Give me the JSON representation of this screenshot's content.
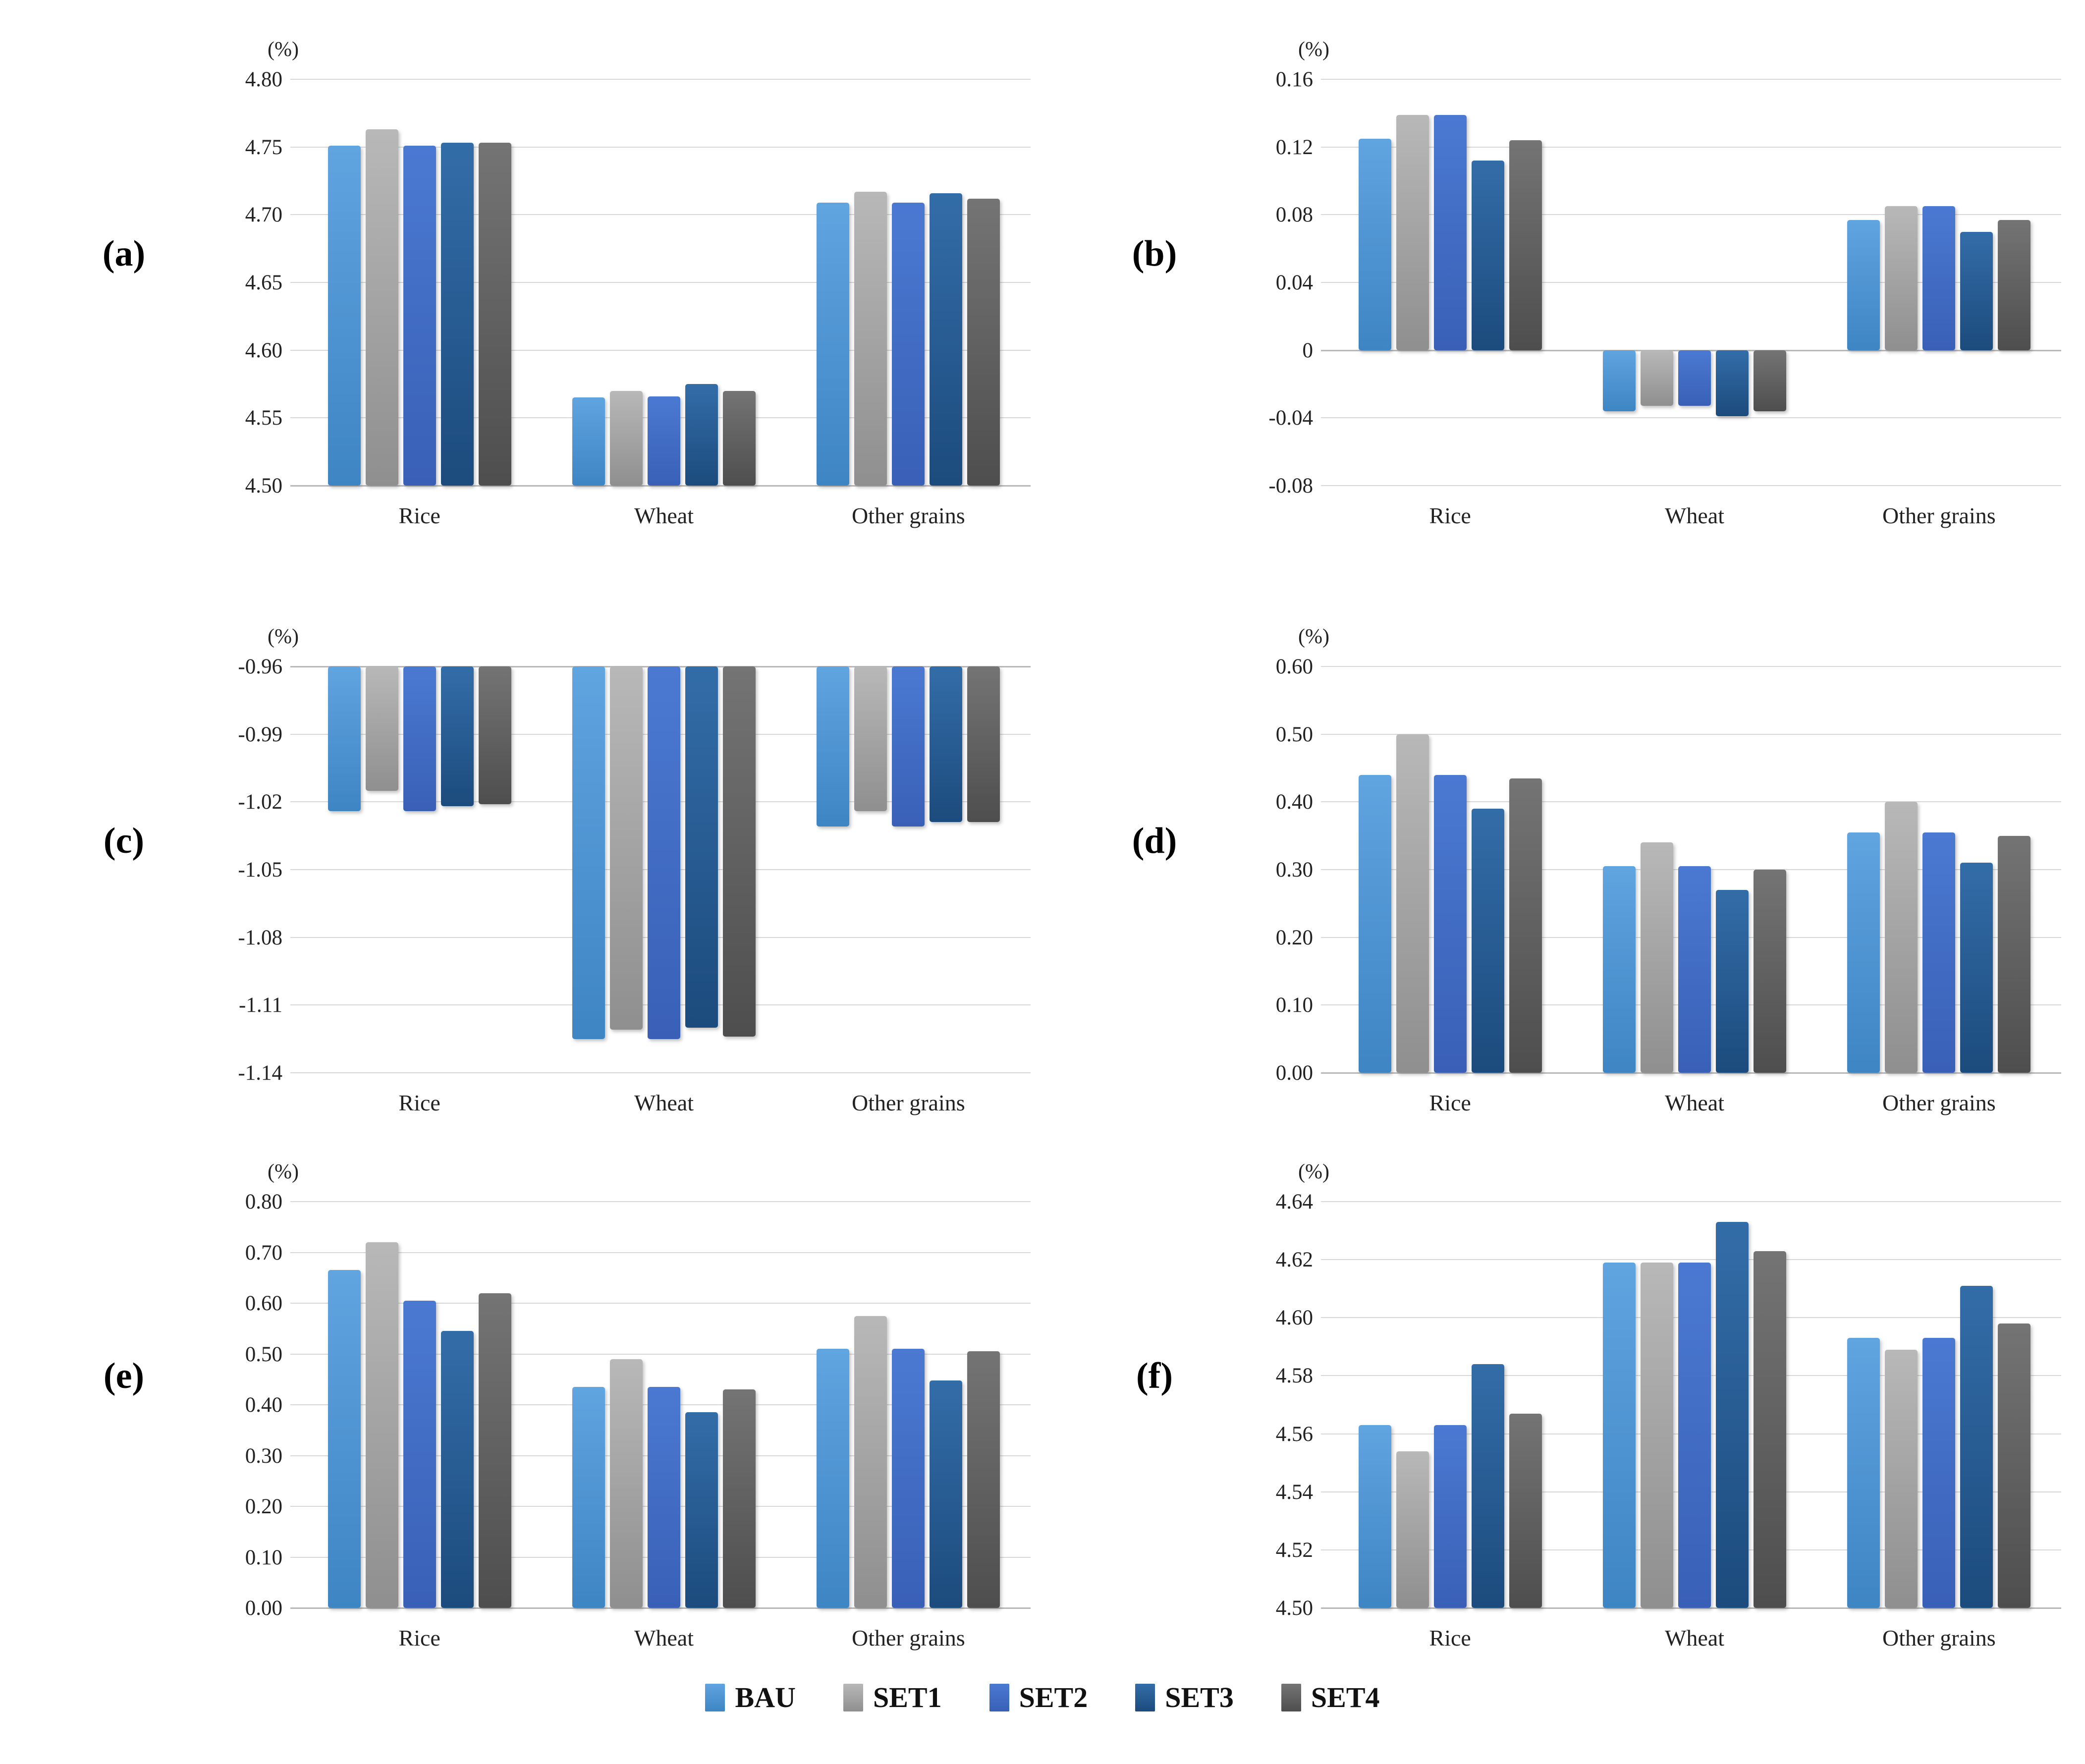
{
  "figure_unit": "(%)",
  "legend": {
    "items": [
      {
        "name": "BAU",
        "color": "#4E96D4",
        "grad_top": "#60A4E0",
        "grad_bottom": "#3E85C4"
      },
      {
        "name": "SET1",
        "color": "#A6A6A6",
        "grad_top": "#B8B8B8",
        "grad_bottom": "#8F8F8F"
      },
      {
        "name": "SET2",
        "color": "#4472C4",
        "grad_top": "#4B79D2",
        "grad_bottom": "#3960B6"
      },
      {
        "name": "SET3",
        "color": "#255C92",
        "grad_top": "#336DA8",
        "grad_bottom": "#1C4B7D"
      },
      {
        "name": "SET4",
        "color": "#636363",
        "grad_top": "#747474",
        "grad_bottom": "#4E4E4E"
      }
    ]
  },
  "chart_data": [
    {
      "id": "a",
      "panel_label": "(a)",
      "type": "bar",
      "unit_label": "(%)",
      "categories": [
        "Rice",
        "Wheat",
        "Other grains"
      ],
      "ylim": [
        4.5,
        4.8
      ],
      "baseline": 4.5,
      "grid": true,
      "legend_position": "bottom-shared",
      "ytick_values": [
        4.8,
        4.75,
        4.7,
        4.65,
        4.6,
        4.55,
        4.5
      ],
      "ytick_labels": [
        "4.80",
        "4.75",
        "4.70",
        "4.65",
        "4.60",
        "4.55",
        "4.50"
      ],
      "series": [
        {
          "name": "BAU",
          "values": [
            4.751,
            4.565,
            4.709
          ]
        },
        {
          "name": "SET1",
          "values": [
            4.763,
            4.57,
            4.717
          ]
        },
        {
          "name": "SET2",
          "values": [
            4.751,
            4.566,
            4.709
          ]
        },
        {
          "name": "SET3",
          "values": [
            4.753,
            4.575,
            4.716
          ]
        },
        {
          "name": "SET4",
          "values": [
            4.753,
            4.57,
            4.712
          ]
        }
      ]
    },
    {
      "id": "b",
      "panel_label": "(b)",
      "type": "bar",
      "unit_label": "(%)",
      "categories": [
        "Rice",
        "Wheat",
        "Other grains"
      ],
      "ylim": [
        -0.08,
        0.16
      ],
      "baseline": 0,
      "grid": true,
      "legend_position": "bottom-shared",
      "ytick_values": [
        0.16,
        0.12,
        0.08,
        0.04,
        0,
        -0.04,
        -0.08
      ],
      "ytick_labels": [
        "0.16",
        "0.12",
        "0.08",
        "0.04",
        "0",
        "-0.04",
        "-0.08"
      ],
      "series": [
        {
          "name": "BAU",
          "values": [
            0.125,
            -0.036,
            0.077
          ]
        },
        {
          "name": "SET1",
          "values": [
            0.139,
            -0.033,
            0.085
          ]
        },
        {
          "name": "SET2",
          "values": [
            0.139,
            -0.033,
            0.085
          ]
        },
        {
          "name": "SET3",
          "values": [
            0.112,
            -0.039,
            0.07
          ]
        },
        {
          "name": "SET4",
          "values": [
            0.124,
            -0.036,
            0.077
          ]
        }
      ]
    },
    {
      "id": "c",
      "panel_label": "(c)",
      "type": "bar",
      "unit_label": "(%)",
      "categories": [
        "Rice",
        "Wheat",
        "Other grains"
      ],
      "ylim": [
        -1.14,
        -0.96
      ],
      "baseline": -0.96,
      "grid": true,
      "legend_position": "bottom-shared",
      "ytick_values": [
        -0.96,
        -0.99,
        -1.02,
        -1.05,
        -1.08,
        -1.11,
        -1.14
      ],
      "ytick_labels": [
        "-0.96",
        "-0.99",
        "-1.02",
        "-1.05",
        "-1.08",
        "-1.11",
        "-1.14"
      ],
      "series": [
        {
          "name": "BAU",
          "values": [
            -1.024,
            -1.125,
            -1.031
          ]
        },
        {
          "name": "SET1",
          "values": [
            -1.015,
            -1.121,
            -1.024
          ]
        },
        {
          "name": "SET2",
          "values": [
            -1.024,
            -1.125,
            -1.031
          ]
        },
        {
          "name": "SET3",
          "values": [
            -1.022,
            -1.12,
            -1.029
          ]
        },
        {
          "name": "SET4",
          "values": [
            -1.021,
            -1.124,
            -1.029
          ]
        }
      ]
    },
    {
      "id": "d",
      "panel_label": "(d)",
      "type": "bar",
      "unit_label": "(%)",
      "categories": [
        "Rice",
        "Wheat",
        "Other grains"
      ],
      "ylim": [
        0.0,
        0.6
      ],
      "baseline": 0,
      "grid": true,
      "legend_position": "bottom-shared",
      "ytick_values": [
        0.6,
        0.5,
        0.4,
        0.3,
        0.2,
        0.1,
        0.0
      ],
      "ytick_labels": [
        "0.60",
        "0.50",
        "0.40",
        "0.30",
        "0.20",
        "0.10",
        "0.00"
      ],
      "series": [
        {
          "name": "BAU",
          "values": [
            0.44,
            0.305,
            0.355
          ]
        },
        {
          "name": "SET1",
          "values": [
            0.5,
            0.34,
            0.4
          ]
        },
        {
          "name": "SET2",
          "values": [
            0.44,
            0.305,
            0.355
          ]
        },
        {
          "name": "SET3",
          "values": [
            0.39,
            0.27,
            0.31
          ]
        },
        {
          "name": "SET4",
          "values": [
            0.435,
            0.3,
            0.35
          ]
        }
      ]
    },
    {
      "id": "e",
      "panel_label": "(e)",
      "type": "bar",
      "unit_label": "(%)",
      "categories": [
        "Rice",
        "Wheat",
        "Other grains"
      ],
      "ylim": [
        0.0,
        0.8
      ],
      "baseline": 0,
      "grid": true,
      "legend_position": "bottom-shared",
      "ytick_values": [
        0.8,
        0.7,
        0.6,
        0.5,
        0.4,
        0.3,
        0.2,
        0.1,
        0.0
      ],
      "ytick_labels": [
        "0.80",
        "0.70",
        "0.60",
        "0.50",
        "0.40",
        "0.30",
        "0.20",
        "0.10",
        "0.00"
      ],
      "series": [
        {
          "name": "BAU",
          "values": [
            0.665,
            0.435,
            0.51
          ]
        },
        {
          "name": "SET1",
          "values": [
            0.72,
            0.49,
            0.575
          ]
        },
        {
          "name": "SET2",
          "values": [
            0.605,
            0.435,
            0.51
          ]
        },
        {
          "name": "SET3",
          "values": [
            0.545,
            0.385,
            0.448
          ]
        },
        {
          "name": "SET4",
          "values": [
            0.62,
            0.43,
            0.505
          ]
        }
      ]
    },
    {
      "id": "f",
      "panel_label": "(f)",
      "type": "bar",
      "unit_label": "(%)",
      "categories": [
        "Rice",
        "Wheat",
        "Other grains"
      ],
      "ylim": [
        4.5,
        4.64
      ],
      "baseline": 4.5,
      "grid": true,
      "legend_position": "bottom-shared",
      "ytick_values": [
        4.64,
        4.62,
        4.6,
        4.58,
        4.56,
        4.54,
        4.52,
        4.5
      ],
      "ytick_labels": [
        "4.64",
        "4.62",
        "4.60",
        "4.58",
        "4.56",
        "4.54",
        "4.52",
        "4.50"
      ],
      "series": [
        {
          "name": "BAU",
          "values": [
            4.563,
            4.619,
            4.593
          ]
        },
        {
          "name": "SET1",
          "values": [
            4.554,
            4.619,
            4.589
          ]
        },
        {
          "name": "SET2",
          "values": [
            4.563,
            4.619,
            4.593
          ]
        },
        {
          "name": "SET3",
          "values": [
            4.584,
            4.633,
            4.611
          ]
        },
        {
          "name": "SET4",
          "values": [
            4.567,
            4.623,
            4.598
          ]
        }
      ]
    }
  ]
}
